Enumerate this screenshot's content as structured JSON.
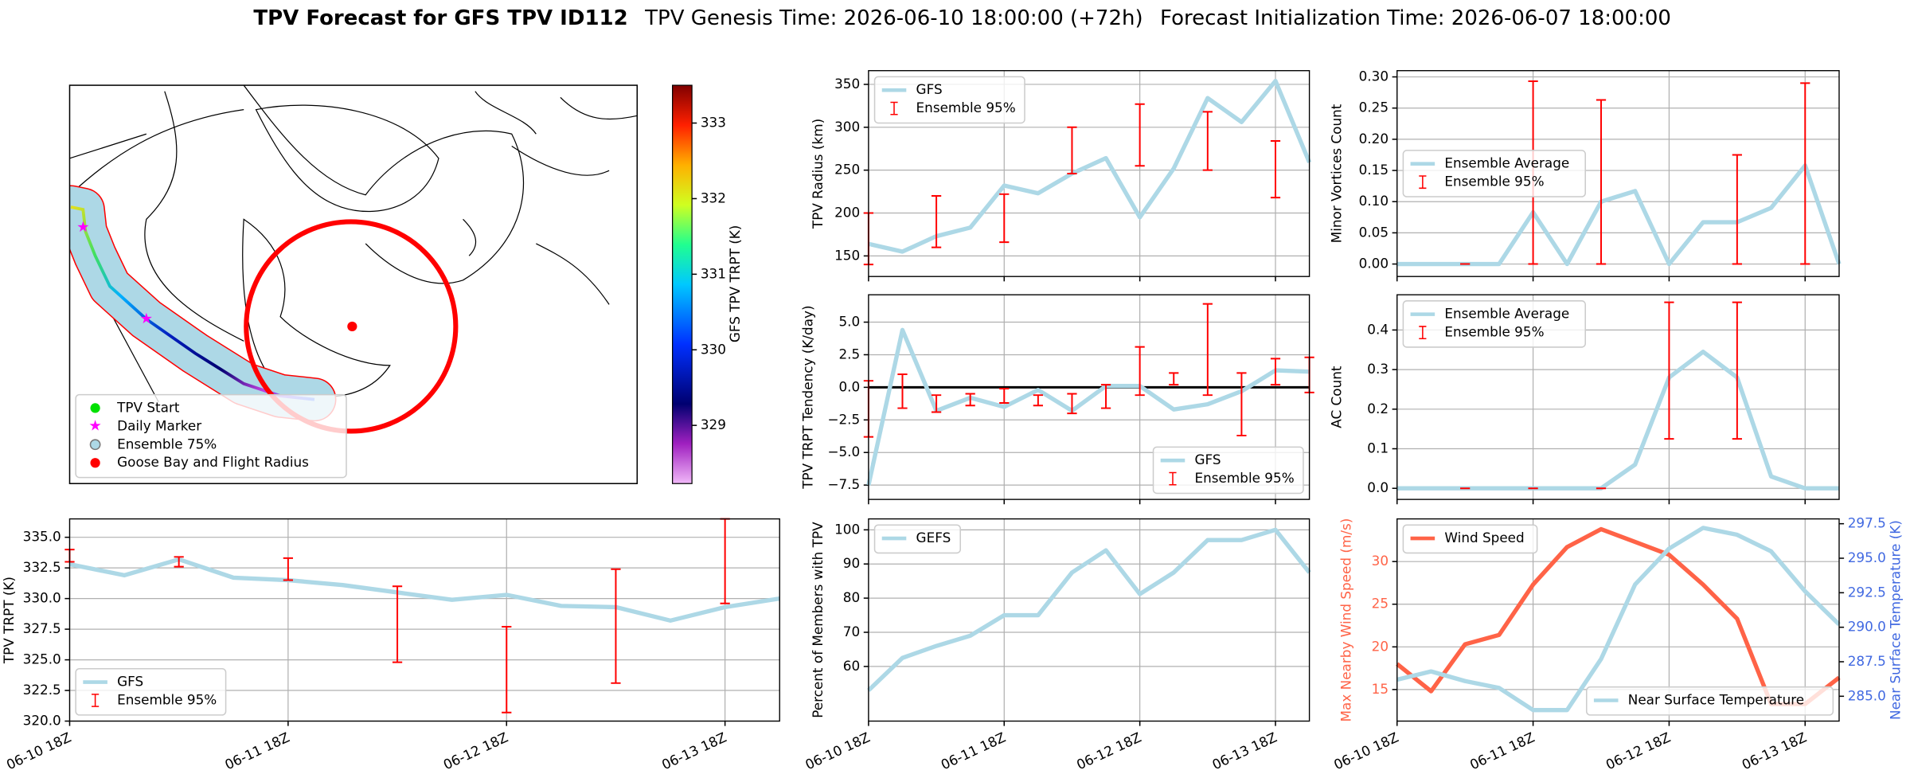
{
  "header": {
    "title": "TPV Forecast for GFS TPV ID112",
    "genesis": "TPV Genesis Time: 2026-06-10 18:00:00 (+72h)",
    "init": "Forecast Initialization Time: 2026-06-07 18:00:00"
  },
  "chart_data": [
    {
      "type": "map",
      "colorbar_label": "GFS TPV TRPT (K)",
      "clim": [
        328.23,
        333.5
      ],
      "cticks": [
        329,
        330,
        331,
        332,
        333
      ],
      "legend": "lower left",
      "legend_entries": [
        {
          "name": "TPV Start",
          "color": "#00e000",
          "marker": "circle"
        },
        {
          "name": "Daily Marker",
          "color": "#ff00ff",
          "marker": "star"
        },
        {
          "name": "Ensemble 75%",
          "color": "#add8e6",
          "marker": "circle"
        },
        {
          "name": "Goose Bay and Flight Radius",
          "color": "#ff0000",
          "marker": "circle"
        }
      ]
    },
    {
      "type": "line",
      "ylabel": "TPV Radius (km)",
      "grid": true,
      "legend": "upper left",
      "x": [
        "06-10 18Z",
        "06-11 00Z",
        "06-11 06Z",
        "06-11 12Z",
        "06-11 18Z",
        "06-12 00Z",
        "06-12 06Z",
        "06-12 12Z",
        "06-12 18Z",
        "06-13 00Z",
        "06-13 06Z",
        "06-13 12Z",
        "06-13 18Z",
        "06-14 00Z"
      ],
      "xticks": [
        "06-10 18Z",
        "06-11 18Z",
        "06-12 18Z",
        "06-13 18Z"
      ],
      "xtick_labels": false,
      "ylim": [
        126,
        366
      ],
      "yticks": [
        150,
        200,
        250,
        300,
        350
      ],
      "series": [
        {
          "name": "GFS",
          "color": "#add8e6",
          "values": [
            164,
            155,
            173,
            183,
            232,
            223,
            246,
            264,
            195,
            252,
            334,
            306,
            354,
            259
          ]
        }
      ],
      "errorbars": {
        "name": "Ensemble 95%",
        "color": "#ff0000",
        "low": [
          140,
          null,
          160,
          null,
          166,
          null,
          246,
          null,
          255,
          null,
          250,
          null,
          218,
          null
        ],
        "high": [
          200,
          null,
          220,
          null,
          222,
          null,
          300,
          null,
          327,
          null,
          318,
          null,
          284,
          null
        ]
      }
    },
    {
      "type": "line",
      "ylabel": "Minor Vortices Count",
      "grid": true,
      "legend": "center left",
      "x": [
        "06-10 18Z",
        "06-11 00Z",
        "06-11 06Z",
        "06-11 12Z",
        "06-11 18Z",
        "06-12 00Z",
        "06-12 06Z",
        "06-12 12Z",
        "06-12 18Z",
        "06-13 00Z",
        "06-13 06Z",
        "06-13 12Z",
        "06-13 18Z",
        "06-14 00Z"
      ],
      "xticks": [
        "06-10 18Z",
        "06-11 18Z",
        "06-12 18Z",
        "06-13 18Z"
      ],
      "xtick_labels": false,
      "ylim": [
        -0.02,
        0.31
      ],
      "yticks": [
        {
          "value": 0,
          "label": "0.00"
        },
        {
          "value": 0.05,
          "label": "0.05"
        },
        {
          "value": 0.1,
          "label": "0.10"
        },
        {
          "value": 0.15,
          "label": "0.15"
        },
        {
          "value": 0.2,
          "label": "0.20"
        },
        {
          "value": 0.25,
          "label": "0.25"
        },
        {
          "value": 0.3,
          "label": "0.30"
        }
      ],
      "series": [
        {
          "name": "Ensemble Average",
          "color": "#add8e6",
          "values": [
            0,
            0,
            0,
            0,
            0.083,
            0,
            0.1,
            0.117,
            0,
            0.067,
            0.067,
            0.09,
            0.158,
            0
          ]
        }
      ],
      "errorbars": {
        "name": "Ensemble 95%",
        "color": "#ff0000",
        "low": [
          null,
          null,
          0,
          null,
          0,
          null,
          0,
          null,
          null,
          null,
          0,
          null,
          0,
          null
        ],
        "high": [
          null,
          null,
          0,
          null,
          0.293,
          null,
          0.263,
          null,
          null,
          null,
          0.175,
          null,
          0.29,
          null
        ]
      }
    },
    {
      "type": "line",
      "ylabel": "TPV TRPT Tendency (K/day)",
      "grid": true,
      "legend": "lower right",
      "hlines": [
        0
      ],
      "hline_color": "#000000",
      "x": [
        "06-10 18Z",
        "06-11 00Z",
        "06-11 06Z",
        "06-11 12Z",
        "06-11 18Z",
        "06-12 00Z",
        "06-12 06Z",
        "06-12 12Z",
        "06-12 18Z",
        "06-13 00Z",
        "06-13 06Z",
        "06-13 12Z",
        "06-13 18Z",
        "06-14 00Z"
      ],
      "xticks": [
        "06-10 18Z",
        "06-11 18Z",
        "06-12 18Z",
        "06-13 18Z"
      ],
      "xtick_labels": false,
      "ylim": [
        -8.6,
        7.1
      ],
      "yticks": [
        {
          "value": -7.5,
          "label": "−7.5"
        },
        {
          "value": -5,
          "label": "−5.0"
        },
        {
          "value": -2.5,
          "label": "−2.5"
        },
        {
          "value": 0,
          "label": "0.0"
        },
        {
          "value": 2.5,
          "label": "2.5"
        },
        {
          "value": 5,
          "label": "5.0"
        }
      ],
      "series": [
        {
          "name": "GFS",
          "color": "#add8e6",
          "values": [
            -7.5,
            4.4,
            -1.8,
            -0.8,
            -1.5,
            -0.2,
            -1.8,
            0.1,
            0.1,
            -1.7,
            -1.3,
            -0.3,
            1.3,
            1.2
          ]
        }
      ],
      "errorbars": {
        "name": "Ensemble 95%",
        "color": "#ff0000",
        "low": [
          -3.8,
          -1.6,
          -1.9,
          -1.4,
          -1.2,
          -1.4,
          -2.0,
          -1.6,
          -0.6,
          0.2,
          -0.6,
          -3.7,
          0.2,
          -0.4
        ],
        "high": [
          0.5,
          1.0,
          -0.6,
          -0.5,
          -0.1,
          -0.6,
          -0.5,
          0.2,
          3.1,
          1.1,
          6.4,
          1.1,
          2.2,
          2.3
        ]
      }
    },
    {
      "type": "line",
      "ylabel": "AC Count",
      "grid": true,
      "legend": "upper left",
      "x": [
        "06-10 18Z",
        "06-11 00Z",
        "06-11 06Z",
        "06-11 12Z",
        "06-11 18Z",
        "06-12 00Z",
        "06-12 06Z",
        "06-12 12Z",
        "06-12 18Z",
        "06-13 00Z",
        "06-13 06Z",
        "06-13 12Z",
        "06-13 18Z",
        "06-14 00Z"
      ],
      "xticks": [
        "06-10 18Z",
        "06-11 18Z",
        "06-12 18Z",
        "06-13 18Z"
      ],
      "xtick_labels": false,
      "ylim": [
        -0.028,
        0.489
      ],
      "yticks": [
        {
          "value": 0,
          "label": "0.0"
        },
        {
          "value": 0.1,
          "label": "0.1"
        },
        {
          "value": 0.2,
          "label": "0.2"
        },
        {
          "value": 0.3,
          "label": "0.3"
        },
        {
          "value": 0.4,
          "label": "0.4"
        }
      ],
      "series": [
        {
          "name": "Ensemble Average",
          "color": "#add8e6",
          "values": [
            0,
            0,
            0,
            0,
            0,
            0,
            0,
            0.06,
            0.28,
            0.345,
            0.28,
            0.03,
            0,
            0
          ]
        }
      ],
      "errorbars": {
        "name": "Ensemble 95%",
        "color": "#ff0000",
        "low": [
          null,
          null,
          0,
          null,
          0,
          null,
          0,
          null,
          0.125,
          null,
          0.125,
          null,
          null,
          null
        ],
        "high": [
          null,
          null,
          0,
          null,
          0,
          null,
          0,
          null,
          0.47,
          null,
          0.47,
          null,
          null,
          null
        ]
      }
    },
    {
      "type": "line",
      "ylabel": "TPV TRPT (K)",
      "grid": true,
      "legend": "lower left",
      "x": [
        "06-10 18Z",
        "06-11 00Z",
        "06-11 06Z",
        "06-11 12Z",
        "06-11 18Z",
        "06-12 00Z",
        "06-12 06Z",
        "06-12 12Z",
        "06-12 18Z",
        "06-13 00Z",
        "06-13 06Z",
        "06-13 12Z",
        "06-13 18Z",
        "06-14 00Z"
      ],
      "xticks": [
        "06-10 18Z",
        "06-11 18Z",
        "06-12 18Z",
        "06-13 18Z"
      ],
      "xtick_labels": true,
      "ylim": [
        320,
        336.5
      ],
      "yticks": [
        {
          "value": 320,
          "label": "320.0"
        },
        {
          "value": 322.5,
          "label": "322.5"
        },
        {
          "value": 325,
          "label": "325.0"
        },
        {
          "value": 327.5,
          "label": "327.5"
        },
        {
          "value": 330,
          "label": "330.0"
        },
        {
          "value": 332.5,
          "label": "332.5"
        },
        {
          "value": 335,
          "label": "335.0"
        }
      ],
      "series": [
        {
          "name": "GFS",
          "color": "#add8e6",
          "values": [
            332.8,
            331.9,
            333.2,
            331.7,
            331.5,
            331.1,
            330.5,
            329.9,
            330.3,
            329.4,
            329.3,
            328.2,
            329.3,
            330.0
          ]
        }
      ],
      "errorbars": {
        "name": "Ensemble 95%",
        "color": "#ff0000",
        "low": [
          333.0,
          null,
          332.6,
          null,
          331.5,
          null,
          324.8,
          null,
          320.7,
          null,
          323.1,
          null,
          329.6,
          null
        ],
        "high": [
          334.0,
          null,
          333.4,
          null,
          333.3,
          null,
          331.0,
          null,
          327.7,
          null,
          332.4,
          null,
          336.5,
          null
        ]
      }
    },
    {
      "type": "line",
      "ylabel": "Percent of Members with TPV",
      "grid": true,
      "legend": "upper left",
      "x": [
        "06-10 18Z",
        "06-11 00Z",
        "06-11 06Z",
        "06-11 12Z",
        "06-11 18Z",
        "06-12 00Z",
        "06-12 06Z",
        "06-12 12Z",
        "06-12 18Z",
        "06-13 00Z",
        "06-13 06Z",
        "06-13 12Z",
        "06-13 18Z",
        "06-14 00Z"
      ],
      "xticks": [
        "06-10 18Z",
        "06-11 18Z",
        "06-12 18Z",
        "06-13 18Z"
      ],
      "xtick_labels": true,
      "ylim": [
        44,
        103.2
      ],
      "yticks": [
        60,
        70,
        80,
        90,
        100
      ],
      "series": [
        {
          "name": "GEFS",
          "color": "#add8e6",
          "values": [
            53,
            62.5,
            66,
            69,
            75,
            75,
            87.5,
            94,
            81.2,
            87.5,
            97,
            97,
            100,
            87.5
          ]
        }
      ]
    },
    {
      "type": "line",
      "ylabel": "Max Nearby Wind Speed (m/s)",
      "ylabel_color": "#ff6347",
      "y2label": "Near Surface Temperature (K)",
      "y2label_color": "#4169e1",
      "grid": true,
      "x": [
        "06-10 18Z",
        "06-11 00Z",
        "06-11 06Z",
        "06-11 12Z",
        "06-11 18Z",
        "06-12 00Z",
        "06-12 06Z",
        "06-12 12Z",
        "06-12 18Z",
        "06-13 00Z",
        "06-13 06Z",
        "06-13 12Z",
        "06-13 18Z",
        "06-14 00Z"
      ],
      "xticks": [
        "06-10 18Z",
        "06-11 18Z",
        "06-12 18Z",
        "06-13 18Z"
      ],
      "xtick_labels": true,
      "ylim": [
        11.3,
        35
      ],
      "yticks": [
        15,
        20,
        25,
        30
      ],
      "y2lim": [
        283.2,
        297.85
      ],
      "y2ticks": [
        {
          "value": 285,
          "label": "285.0"
        },
        {
          "value": 287.5,
          "label": "287.5"
        },
        {
          "value": 290,
          "label": "290.0"
        },
        {
          "value": 292.5,
          "label": "292.5"
        },
        {
          "value": 295,
          "label": "295.0"
        },
        {
          "value": 297.5,
          "label": "297.5"
        }
      ],
      "series": [
        {
          "name": "Wind Speed",
          "color": "#ff6347",
          "legend": "upper left",
          "values": [
            18,
            14.8,
            20.3,
            21.4,
            27.3,
            31.7,
            33.8,
            32.3,
            30.8,
            27.3,
            23.3,
            13.3,
            13.3,
            16.4
          ]
        },
        {
          "name": "Near Surface Temperature",
          "color": "#add8e6",
          "axis": "y2",
          "legend": "lower right",
          "values": [
            286.2,
            286.8,
            286.1,
            285.6,
            284.0,
            284.0,
            287.7,
            293.1,
            295.7,
            297.2,
            296.7,
            295.5,
            292.6,
            290.2
          ]
        }
      ]
    }
  ]
}
